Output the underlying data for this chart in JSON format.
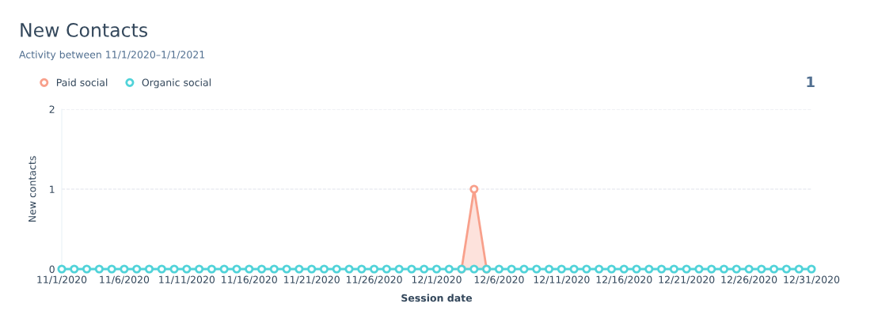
{
  "chart_data": {
    "type": "area",
    "title": "New Contacts",
    "subtitle": "Activity between 11/1/2020–1/1/2021",
    "xlabel": "Session date",
    "ylabel": "New contacts",
    "x": [
      "2020-11-01",
      "2020-11-02",
      "2020-11-03",
      "2020-11-04",
      "2020-11-05",
      "2020-11-06",
      "2020-11-07",
      "2020-11-08",
      "2020-11-09",
      "2020-11-10",
      "2020-11-11",
      "2020-11-12",
      "2020-11-13",
      "2020-11-14",
      "2020-11-15",
      "2020-11-16",
      "2020-11-17",
      "2020-11-18",
      "2020-11-19",
      "2020-11-20",
      "2020-11-21",
      "2020-11-22",
      "2020-11-23",
      "2020-11-24",
      "2020-11-25",
      "2020-11-26",
      "2020-11-27",
      "2020-11-28",
      "2020-11-29",
      "2020-11-30",
      "2020-12-01",
      "2020-12-02",
      "2020-12-03",
      "2020-12-04",
      "2020-12-05",
      "2020-12-06",
      "2020-12-07",
      "2020-12-08",
      "2020-12-09",
      "2020-12-10",
      "2020-12-11",
      "2020-12-12",
      "2020-12-13",
      "2020-12-14",
      "2020-12-15",
      "2020-12-16",
      "2020-12-17",
      "2020-12-18",
      "2020-12-19",
      "2020-12-20",
      "2020-12-21",
      "2020-12-22",
      "2020-12-23",
      "2020-12-24",
      "2020-12-25",
      "2020-12-26",
      "2020-12-27",
      "2020-12-28",
      "2020-12-29",
      "2020-12-30",
      "2020-12-31"
    ],
    "series": [
      {
        "name": "Paid social",
        "color": "#f8a08b",
        "values": [
          null,
          null,
          null,
          null,
          null,
          null,
          null,
          null,
          null,
          null,
          null,
          null,
          null,
          null,
          null,
          null,
          null,
          null,
          null,
          null,
          null,
          null,
          null,
          null,
          null,
          null,
          null,
          null,
          null,
          null,
          null,
          null,
          0,
          1,
          0,
          null,
          null,
          null,
          null,
          null,
          null,
          null,
          null,
          null,
          null,
          null,
          null,
          null,
          null,
          null,
          null,
          null,
          null,
          null,
          null,
          null,
          null,
          null,
          null,
          null,
          null
        ]
      },
      {
        "name": "Organic social",
        "type": "line",
        "color": "#51d3d9",
        "values": [
          0,
          0,
          0,
          0,
          0,
          0,
          0,
          0,
          0,
          0,
          0,
          0,
          0,
          0,
          0,
          0,
          0,
          0,
          0,
          0,
          0,
          0,
          0,
          0,
          0,
          0,
          0,
          0,
          0,
          0,
          0,
          0,
          0,
          0,
          0,
          0,
          0,
          0,
          0,
          0,
          0,
          0,
          0,
          0,
          0,
          0,
          0,
          0,
          0,
          0,
          0,
          0,
          0,
          0,
          0,
          0,
          0,
          0,
          0,
          0,
          0
        ]
      }
    ],
    "xlim": [
      "2020-11-01",
      "2020-12-31"
    ],
    "xticks": [
      {
        "value": "2020-11-01",
        "label": "11/1/2020"
      },
      {
        "value": "2020-11-06",
        "label": "11/6/2020"
      },
      {
        "value": "2020-11-11",
        "label": "11/11/2020"
      },
      {
        "value": "2020-11-16",
        "label": "11/16/2020"
      },
      {
        "value": "2020-11-21",
        "label": "11/21/2020"
      },
      {
        "value": "2020-11-26",
        "label": "11/26/2020"
      },
      {
        "value": "2020-12-01",
        "label": "12/1/2020"
      },
      {
        "value": "2020-12-06",
        "label": "12/6/2020"
      },
      {
        "value": "2020-12-11",
        "label": "12/11/2020"
      },
      {
        "value": "2020-12-16",
        "label": "12/16/2020"
      },
      {
        "value": "2020-12-21",
        "label": "12/21/2020"
      },
      {
        "value": "2020-12-26",
        "label": "12/26/2020"
      },
      {
        "value": "2020-12-31",
        "label": "12/31/2020"
      }
    ],
    "ylim": [
      0,
      2
    ],
    "yticks": [
      0,
      1,
      2
    ],
    "grid": "y",
    "legend": "top left",
    "marker": "circle",
    "line_style": "solid",
    "annotations": [
      "1"
    ]
  }
}
